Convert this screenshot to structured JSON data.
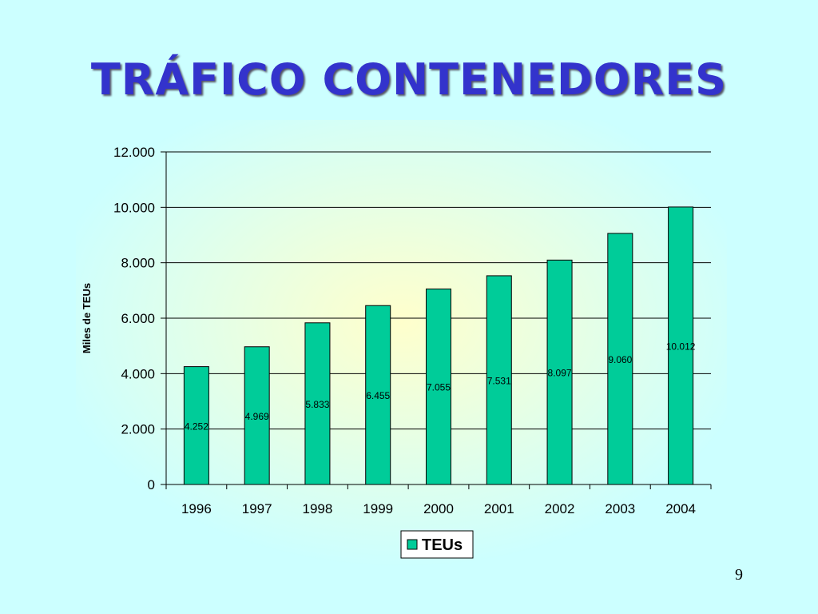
{
  "slide": {
    "title": "TRÁFICO CONTENEDORES",
    "page_number": "9"
  },
  "colors": {
    "background": "#ccffff",
    "plot_glow": "#ffffcc",
    "title": "#3333cc",
    "bar_fill": "#00cc99",
    "bar_stroke": "#000000"
  },
  "chart_data": {
    "type": "bar",
    "categories": [
      "1996",
      "1997",
      "1998",
      "1999",
      "2000",
      "2001",
      "2002",
      "2003",
      "2004"
    ],
    "series": [
      {
        "name": "TEUs",
        "values": [
          4252,
          4969,
          5833,
          6455,
          7055,
          7531,
          8097,
          9060,
          10012
        ],
        "labels": [
          "4.252",
          "4.969",
          "5.833",
          "6.455",
          "7.055",
          "7.531",
          "8.097",
          "9.060",
          "10.012"
        ]
      }
    ],
    "title": "",
    "xlabel": "",
    "ylabel": "Miles de TEUs",
    "ylim": [
      0,
      12000
    ],
    "yticks": [
      0,
      2000,
      4000,
      6000,
      8000,
      10000,
      12000
    ],
    "ytick_labels": [
      "0",
      "2.000",
      "4.000",
      "6.000",
      "8.000",
      "10.000",
      "12.000"
    ],
    "grid": true,
    "legend": "bottom"
  }
}
